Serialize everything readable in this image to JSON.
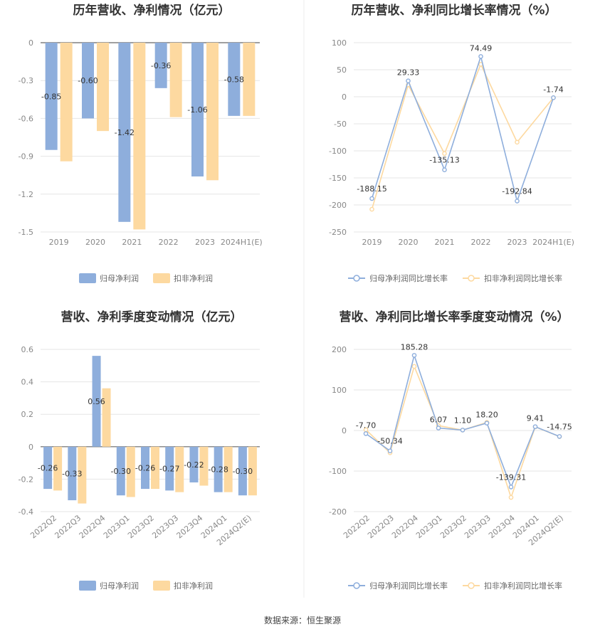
{
  "colors": {
    "blue": "#8eaedc",
    "orange": "#fdd9a0",
    "axis": "#999999",
    "grid": "#e6e6e6"
  },
  "source": "数据来源：恒生聚源",
  "legend_bar": {
    "s1": "归母净利润",
    "s2": "扣非净利润"
  },
  "legend_line": {
    "s1": "归母净利润同比增长率",
    "s2": "扣非净利润同比增长率"
  },
  "chart_data": [
    {
      "type": "bar",
      "title": "历年营收、净利情况（亿元）",
      "categories": [
        "2019",
        "2020",
        "2021",
        "2022",
        "2023",
        "2024H1(E)"
      ],
      "series": [
        {
          "name": "归母净利润",
          "values": [
            -0.85,
            -0.6,
            -1.42,
            -0.36,
            -1.06,
            -0.58
          ]
        },
        {
          "name": "扣非净利润",
          "values": [
            -0.94,
            -0.7,
            -1.48,
            -0.59,
            -1.09,
            -0.58
          ]
        }
      ],
      "data_labels": [
        "-0.85",
        "-0.60",
        "-1.42",
        "-0.36",
        "-1.06",
        "-0.58"
      ],
      "ylim": [
        -1.5,
        0
      ],
      "yticks": [
        "0",
        "-0.3",
        "-0.6",
        "-0.9",
        "-1.2",
        "-1.5"
      ],
      "yticks_values": [
        0,
        -0.3,
        -0.6,
        -0.9,
        -1.2,
        -1.5
      ]
    },
    {
      "type": "line",
      "title": "历年营收、净利同比增长率情况（%）",
      "categories": [
        "2019",
        "2020",
        "2021",
        "2022",
        "2023",
        "2024H1(E)"
      ],
      "series": [
        {
          "name": "归母净利润同比增长率",
          "values": [
            -188.15,
            29.33,
            -135.13,
            74.49,
            -192.84,
            -1.74
          ]
        },
        {
          "name": "扣非净利润同比增长率",
          "values": [
            -208,
            22,
            -105,
            60,
            -84,
            -1.74
          ]
        }
      ],
      "data_labels": [
        "-188.15",
        "29.33",
        "-135.13",
        "74.49",
        "-192.84",
        "-1.74"
      ],
      "ylim": [
        -250,
        100
      ],
      "yticks": [
        "100",
        "50",
        "0",
        "-50",
        "-100",
        "-150",
        "-200",
        "-250"
      ],
      "yticks_values": [
        100,
        50,
        0,
        -50,
        -100,
        -150,
        -200,
        -250
      ]
    },
    {
      "type": "bar",
      "title": "营收、净利季度变动情况（亿元）",
      "categories": [
        "2022Q2",
        "2022Q3",
        "2022Q4",
        "2023Q1",
        "2023Q2",
        "2023Q3",
        "2023Q4",
        "2024Q1",
        "2024Q2(E)"
      ],
      "series": [
        {
          "name": "归母净利润",
          "values": [
            -0.26,
            -0.33,
            0.56,
            -0.3,
            -0.26,
            -0.27,
            -0.22,
            -0.28,
            -0.3
          ]
        },
        {
          "name": "扣非净利润",
          "values": [
            -0.27,
            -0.35,
            0.36,
            -0.31,
            -0.26,
            -0.28,
            -0.24,
            -0.28,
            -0.3
          ]
        }
      ],
      "data_labels": [
        "-0.26",
        "-0.33",
        "0.56",
        "-0.30",
        "-0.26",
        "-0.27",
        "-0.22",
        "-0.28",
        "-0.30"
      ],
      "ylim": [
        -0.4,
        0.6
      ],
      "yticks": [
        "0.6",
        "0.4",
        "0.2",
        "0",
        "-0.2",
        "-0.4"
      ],
      "yticks_values": [
        0.6,
        0.4,
        0.2,
        0,
        -0.2,
        -0.4
      ]
    },
    {
      "type": "line",
      "title": "营收、净利同比增长率季度变动情况（%）",
      "categories": [
        "2022Q2",
        "2022Q3",
        "2022Q4",
        "2023Q1",
        "2023Q2",
        "2023Q3",
        "2023Q4",
        "2024Q1",
        "2024Q2(E)"
      ],
      "series": [
        {
          "name": "归母净利润同比增长率",
          "values": [
            -7.7,
            -50.34,
            185.28,
            6.07,
            1.1,
            18.2,
            -139.31,
            9.41,
            -14.75
          ]
        },
        {
          "name": "扣非净利润同比增长率",
          "values": [
            2,
            -55,
            158,
            12,
            1,
            20,
            -165,
            9,
            -15
          ]
        }
      ],
      "data_labels": [
        "-7.70",
        "-50.34",
        "185.28",
        "6.07",
        "1.10",
        "18.20",
        "-139.31",
        "9.41",
        "-14.75"
      ],
      "ylim": [
        -200,
        200
      ],
      "yticks": [
        "200",
        "100",
        "0",
        "-100",
        "-200"
      ],
      "yticks_values": [
        200,
        100,
        0,
        -100,
        -200
      ]
    }
  ]
}
